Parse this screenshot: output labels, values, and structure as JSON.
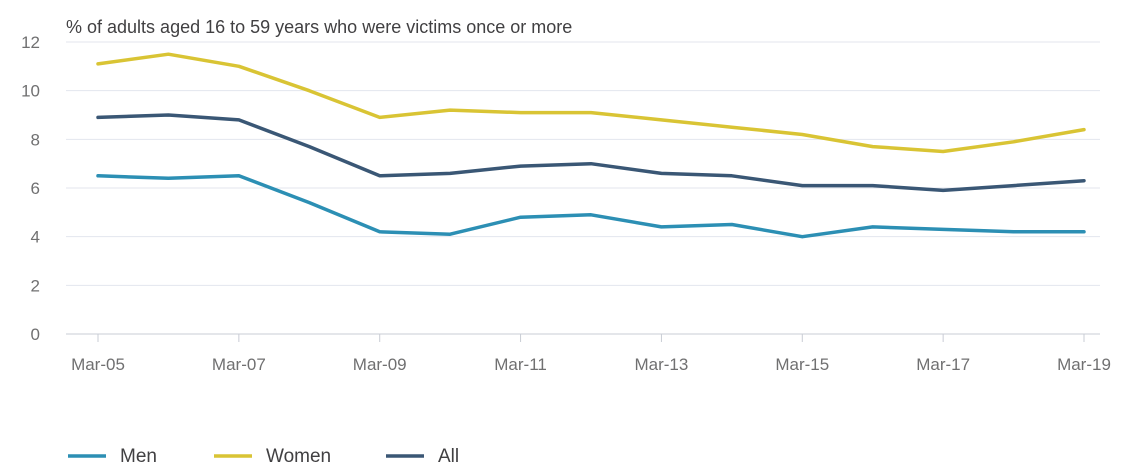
{
  "chart_data": {
    "type": "line",
    "title": "% of adults aged 16 to 59 years who were victims once or more",
    "xlabel": "",
    "ylabel": "",
    "ylim": [
      0,
      12
    ],
    "yticks": [
      0,
      2,
      4,
      6,
      8,
      10,
      12
    ],
    "grid": true,
    "legend_position": "bottom-left",
    "x": [
      "Mar-05",
      "Mar-06",
      "Mar-07",
      "Mar-08",
      "Mar-09",
      "Mar-10",
      "Mar-11",
      "Mar-12",
      "Mar-13",
      "Mar-14",
      "Mar-15",
      "Mar-16",
      "Mar-17",
      "Mar-18",
      "Mar-19"
    ],
    "xtick_labels": [
      "Mar-05",
      "Mar-07",
      "Mar-09",
      "Mar-11",
      "Mar-13",
      "Mar-15",
      "Mar-17",
      "Mar-19"
    ],
    "series": [
      {
        "name": "Men",
        "color": "#2c8fb4",
        "values": [
          6.5,
          6.4,
          6.5,
          5.4,
          4.2,
          4.1,
          4.8,
          4.9,
          4.4,
          4.5,
          4.0,
          4.4,
          4.3,
          4.2,
          4.2
        ]
      },
      {
        "name": "Women",
        "color": "#d9c434",
        "values": [
          11.1,
          11.5,
          11.0,
          10.0,
          8.9,
          9.2,
          9.1,
          9.1,
          8.8,
          8.5,
          8.2,
          7.7,
          7.5,
          7.9,
          8.4
        ]
      },
      {
        "name": "All",
        "color": "#3a5775",
        "values": [
          8.9,
          9.0,
          8.8,
          7.7,
          6.5,
          6.6,
          6.9,
          7.0,
          6.6,
          6.5,
          6.1,
          6.1,
          5.9,
          6.1,
          6.3
        ]
      }
    ]
  }
}
